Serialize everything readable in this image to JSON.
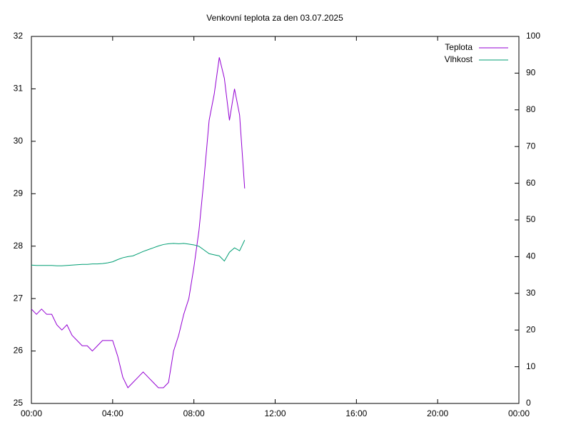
{
  "chart_data": {
    "type": "line",
    "title": "Venkovní teplota za den 03.07.2025",
    "x": [
      0,
      0.25,
      0.5,
      0.75,
      1,
      1.25,
      1.5,
      1.75,
      2,
      2.25,
      2.5,
      2.75,
      3,
      3.25,
      3.5,
      3.75,
      4,
      4.25,
      4.5,
      4.75,
      5,
      5.25,
      5.5,
      5.75,
      6,
      6.25,
      6.5,
      6.75,
      7,
      7.25,
      7.5,
      7.75,
      8,
      8.25,
      8.5,
      8.75,
      9,
      9.25,
      9.5,
      9.75,
      10,
      10.25,
      10.5
    ],
    "series": [
      {
        "name": "Teplota",
        "color": "#9400d3",
        "axis": "y",
        "values": [
          26.8,
          26.7,
          26.8,
          26.7,
          26.7,
          26.5,
          26.4,
          26.5,
          26.3,
          26.2,
          26.1,
          26.1,
          26.0,
          26.1,
          26.2,
          26.2,
          26.2,
          25.9,
          25.5,
          25.3,
          25.4,
          25.5,
          25.6,
          25.5,
          25.4,
          25.3,
          25.3,
          25.4,
          26.0,
          26.3,
          26.7,
          27.0,
          27.6,
          28.3,
          29.3,
          30.4,
          30.9,
          31.6,
          31.2,
          30.4,
          31.0,
          30.5,
          29.1
        ]
      },
      {
        "name": "Vlhkost",
        "color": "#009e73",
        "axis": "y2",
        "values": [
          37.7,
          37.6,
          37.6,
          37.6,
          37.6,
          37.5,
          37.5,
          37.6,
          37.7,
          37.8,
          37.9,
          37.9,
          38.0,
          38.0,
          38.1,
          38.3,
          38.6,
          39.2,
          39.7,
          40.0,
          40.2,
          40.8,
          41.4,
          41.9,
          42.4,
          42.9,
          43.3,
          43.5,
          43.6,
          43.5,
          43.6,
          43.4,
          43.2,
          42.8,
          41.8,
          40.8,
          40.5,
          40.2,
          38.8,
          41.2,
          42.4,
          41.6,
          44.5
        ]
      }
    ],
    "xlim": [
      0,
      24
    ],
    "xticks": [
      {
        "value": 0,
        "label": "00:00"
      },
      {
        "value": 4,
        "label": "04:00"
      },
      {
        "value": 8,
        "label": "08:00"
      },
      {
        "value": 12,
        "label": "12:00"
      },
      {
        "value": 16,
        "label": "16:00"
      },
      {
        "value": 20,
        "label": "20:00"
      },
      {
        "value": 24,
        "label": "00:00"
      }
    ],
    "ylim": [
      25,
      32
    ],
    "yticks": [
      25,
      26,
      27,
      28,
      29,
      30,
      31,
      32
    ],
    "y2lim": [
      0,
      100
    ],
    "y2ticks": [
      0,
      10,
      20,
      30,
      40,
      50,
      60,
      70,
      80,
      90,
      100
    ],
    "legend": "top-right",
    "grid": false
  }
}
